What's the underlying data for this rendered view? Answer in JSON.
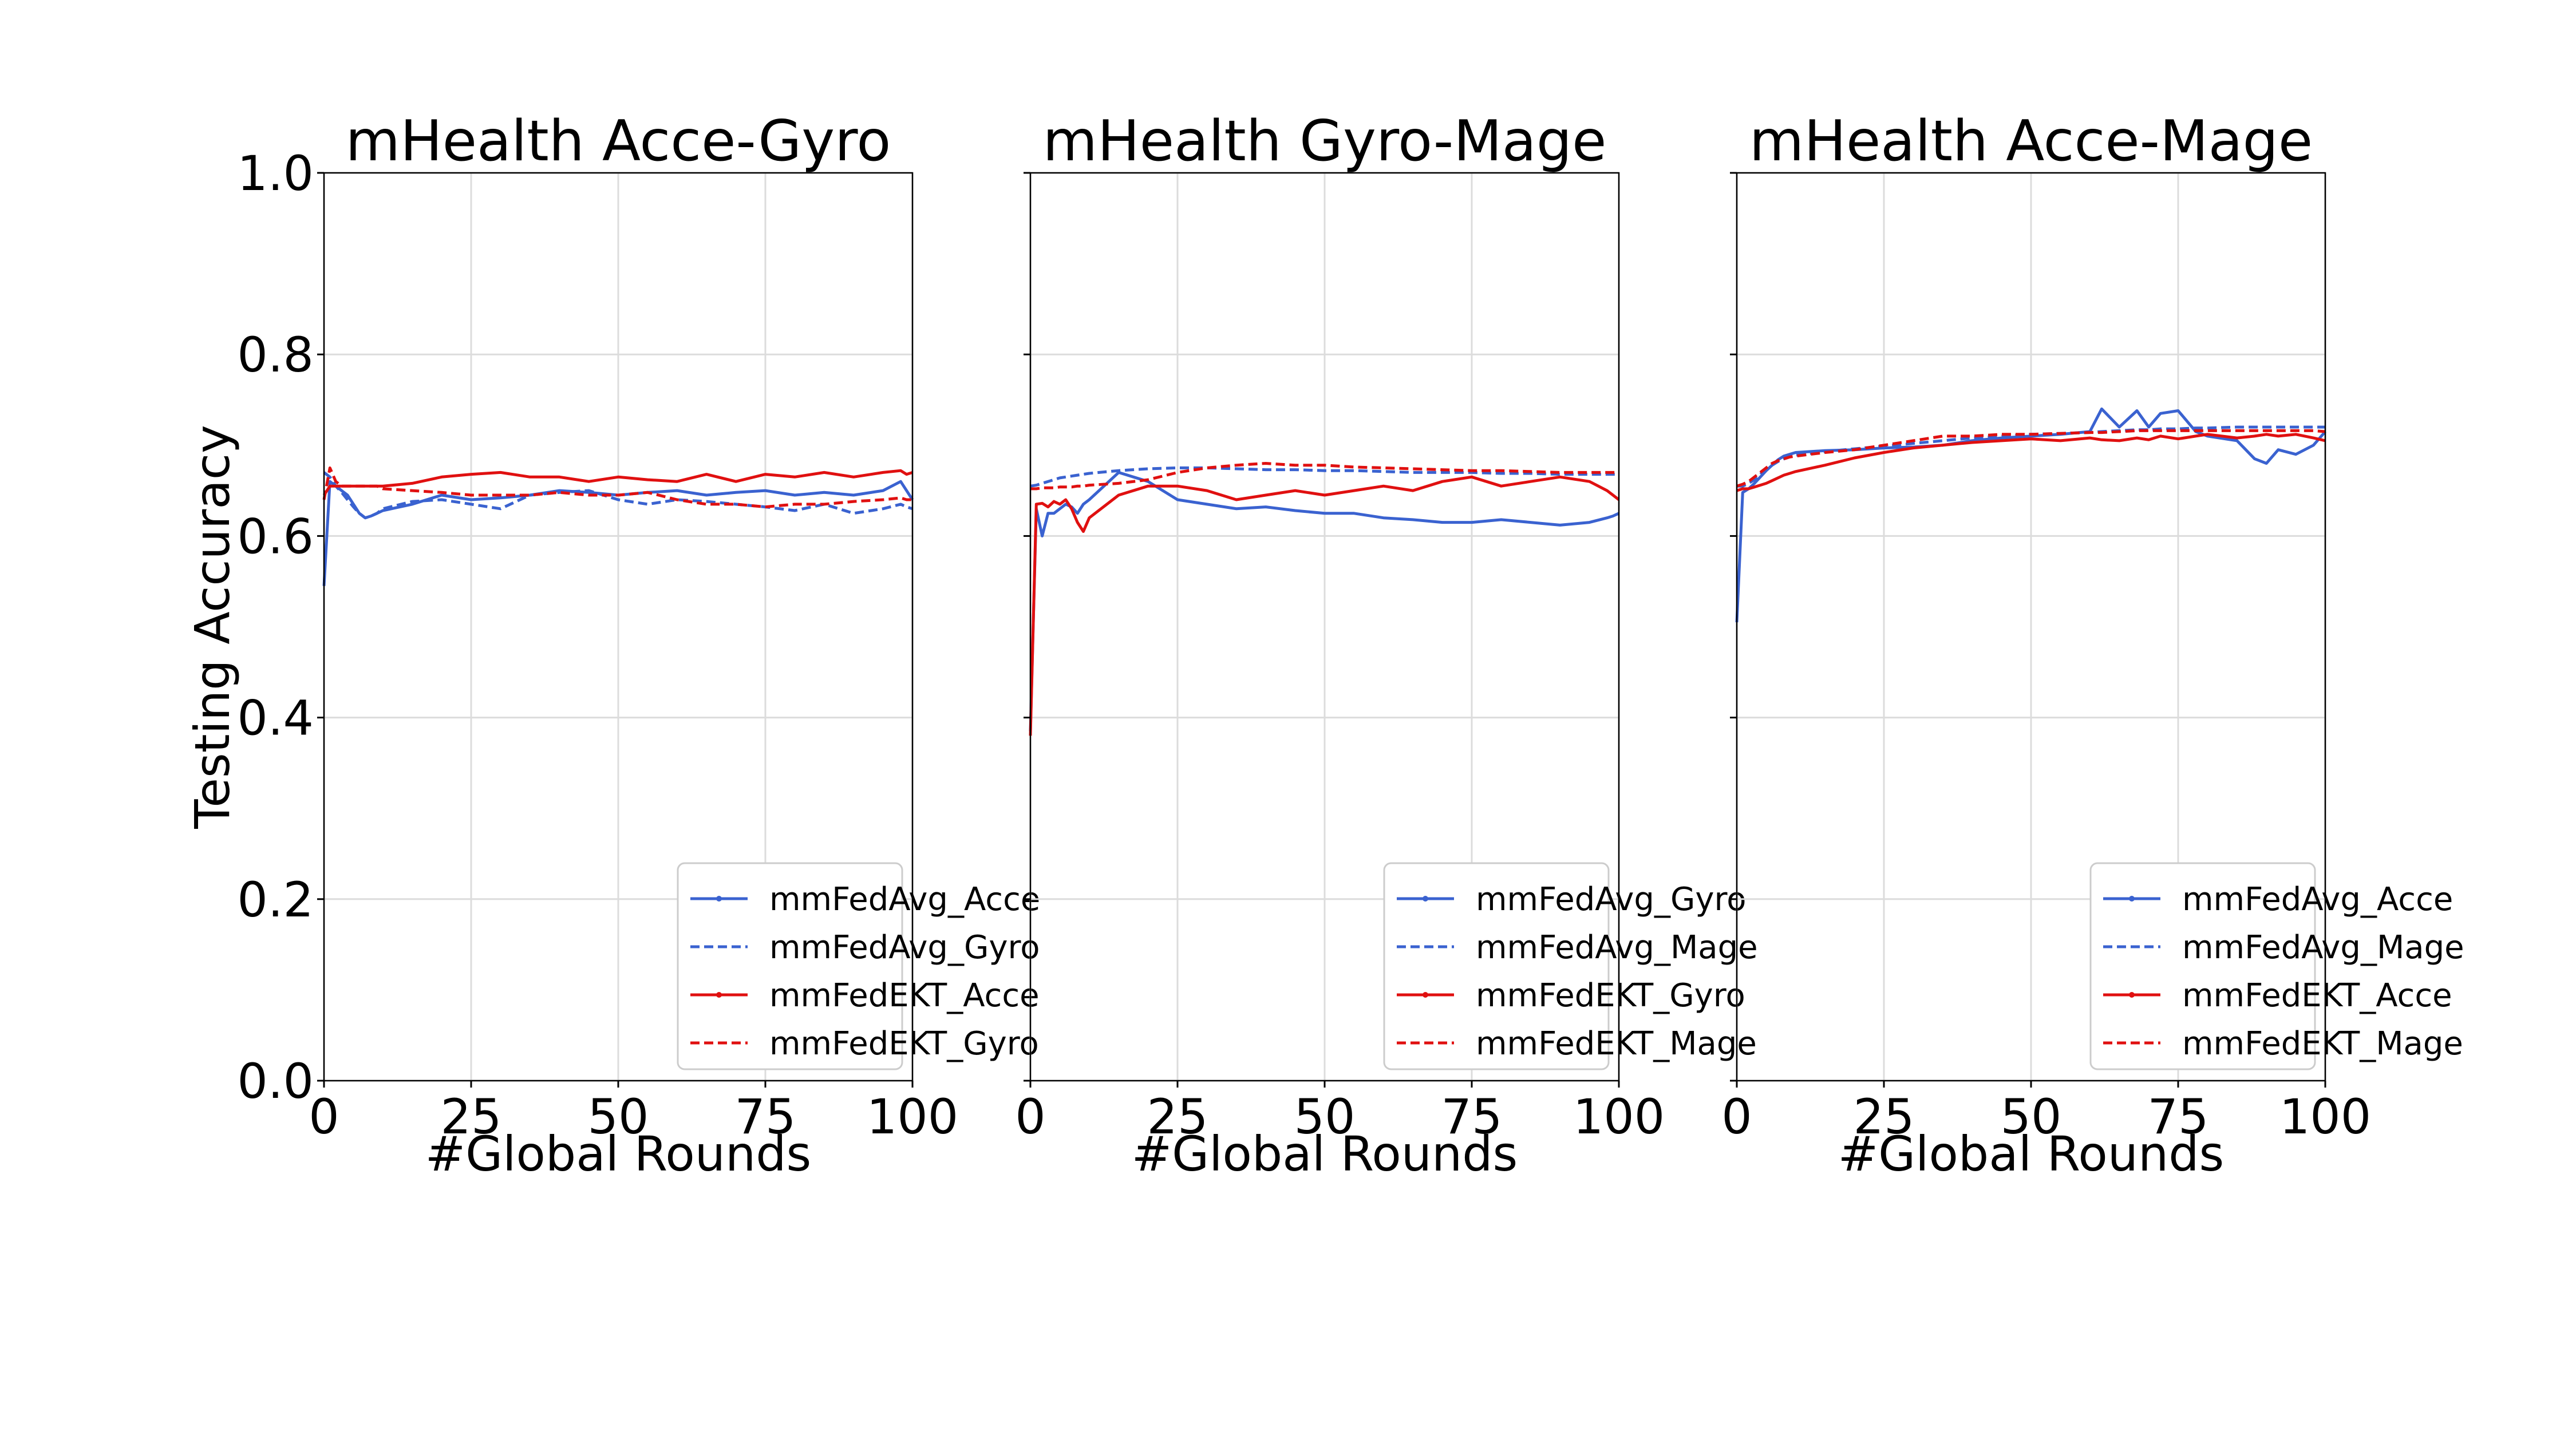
{
  "chart_data": [
    {
      "type": "line",
      "title": "mHealth Acce-Gyro",
      "xlabel": "#Global Rounds",
      "ylabel": "Testing Accuracy",
      "xlim": [
        0,
        100
      ],
      "ylim": [
        0.0,
        1.0
      ],
      "xticks": [
        "0",
        "25",
        "50",
        "75",
        "100"
      ],
      "yticks": [
        "0.0",
        "0.2",
        "0.4",
        "0.6",
        "0.8",
        "1.0"
      ],
      "grid": true,
      "legend_position": "lower-right",
      "x": [
        0,
        1,
        2,
        3,
        4,
        5,
        6,
        7,
        8,
        9,
        10,
        15,
        20,
        25,
        30,
        35,
        40,
        45,
        50,
        55,
        60,
        65,
        70,
        75,
        80,
        85,
        90,
        95,
        98,
        99,
        100
      ],
      "series": [
        {
          "name": "mmFedAvg_Acce",
          "color": "#3a62d0",
          "dash": "solid",
          "values": [
            0.545,
            0.66,
            0.655,
            0.65,
            0.645,
            0.635,
            0.625,
            0.62,
            0.622,
            0.625,
            0.628,
            0.635,
            0.645,
            0.64,
            0.642,
            0.645,
            0.65,
            0.648,
            0.645,
            0.648,
            0.65,
            0.645,
            0.648,
            0.65,
            0.645,
            0.648,
            0.645,
            0.65,
            0.66,
            0.65,
            0.64
          ]
        },
        {
          "name": "mmFedAvg_Gyro",
          "color": "#3a62d0",
          "dash": "dashed",
          "values": [
            0.67,
            0.665,
            0.655,
            0.648,
            0.64,
            0.632,
            0.625,
            0.62,
            0.622,
            0.625,
            0.63,
            0.638,
            0.64,
            0.635,
            0.63,
            0.645,
            0.648,
            0.65,
            0.64,
            0.635,
            0.64,
            0.638,
            0.635,
            0.632,
            0.628,
            0.635,
            0.625,
            0.63,
            0.635,
            0.632,
            0.63
          ]
        },
        {
          "name": "mmFedEKT_Acce",
          "color": "#e01010",
          "dash": "solid",
          "values": [
            0.645,
            0.655,
            0.655,
            0.655,
            0.655,
            0.655,
            0.655,
            0.655,
            0.655,
            0.655,
            0.655,
            0.658,
            0.665,
            0.668,
            0.67,
            0.665,
            0.665,
            0.66,
            0.665,
            0.662,
            0.66,
            0.668,
            0.66,
            0.668,
            0.665,
            0.67,
            0.665,
            0.67,
            0.672,
            0.668,
            0.67
          ]
        },
        {
          "name": "mmFedEKT_Gyro",
          "color": "#e01010",
          "dash": "dashed",
          "values": [
            0.64,
            0.675,
            0.66,
            0.655,
            0.655,
            0.655,
            0.655,
            0.655,
            0.655,
            0.655,
            0.652,
            0.65,
            0.648,
            0.645,
            0.645,
            0.645,
            0.648,
            0.645,
            0.645,
            0.648,
            0.64,
            0.635,
            0.635,
            0.632,
            0.635,
            0.635,
            0.638,
            0.64,
            0.642,
            0.64,
            0.64
          ]
        }
      ]
    },
    {
      "type": "line",
      "title": "mHealth Gyro-Mage",
      "xlabel": "#Global Rounds",
      "ylabel": "",
      "xlim": [
        0,
        100
      ],
      "ylim": [
        0.0,
        1.0
      ],
      "xticks": [
        "0",
        "25",
        "50",
        "75",
        "100"
      ],
      "yticks": [],
      "grid": true,
      "legend_position": "lower-right",
      "x": [
        0,
        1,
        2,
        3,
        4,
        5,
        6,
        7,
        8,
        9,
        10,
        15,
        20,
        25,
        30,
        35,
        40,
        45,
        50,
        55,
        60,
        65,
        70,
        75,
        80,
        85,
        90,
        95,
        98,
        99,
        100
      ],
      "series": [
        {
          "name": "mmFedAvg_Gyro",
          "color": "#3a62d0",
          "dash": "solid",
          "values": [
            0.385,
            0.63,
            0.6,
            0.625,
            0.625,
            0.63,
            0.635,
            0.632,
            0.625,
            0.635,
            0.64,
            0.67,
            0.66,
            0.64,
            0.635,
            0.63,
            0.632,
            0.628,
            0.625,
            0.625,
            0.62,
            0.618,
            0.615,
            0.615,
            0.618,
            0.615,
            0.612,
            0.615,
            0.62,
            0.622,
            0.625
          ]
        },
        {
          "name": "mmFedAvg_Mage",
          "color": "#3a62d0",
          "dash": "dashed",
          "values": [
            0.655,
            0.656,
            0.658,
            0.66,
            0.662,
            0.664,
            0.665,
            0.666,
            0.667,
            0.668,
            0.669,
            0.672,
            0.674,
            0.675,
            0.675,
            0.674,
            0.673,
            0.673,
            0.672,
            0.672,
            0.671,
            0.67,
            0.67,
            0.67,
            0.669,
            0.669,
            0.668,
            0.668,
            0.668,
            0.668,
            0.668
          ]
        },
        {
          "name": "mmFedEKT_Gyro",
          "color": "#e01010",
          "dash": "solid",
          "values": [
            0.38,
            0.635,
            0.636,
            0.632,
            0.638,
            0.635,
            0.64,
            0.63,
            0.615,
            0.605,
            0.62,
            0.645,
            0.655,
            0.655,
            0.65,
            0.64,
            0.645,
            0.65,
            0.645,
            0.65,
            0.655,
            0.65,
            0.66,
            0.665,
            0.655,
            0.66,
            0.665,
            0.66,
            0.65,
            0.645,
            0.64
          ]
        },
        {
          "name": "mmFedEKT_Mage",
          "color": "#e01010",
          "dash": "dashed",
          "values": [
            0.652,
            0.652,
            0.653,
            0.653,
            0.653,
            0.654,
            0.654,
            0.654,
            0.655,
            0.655,
            0.656,
            0.658,
            0.662,
            0.67,
            0.675,
            0.678,
            0.68,
            0.678,
            0.678,
            0.676,
            0.675,
            0.674,
            0.673,
            0.672,
            0.672,
            0.671,
            0.67,
            0.67,
            0.67,
            0.67,
            0.67
          ]
        }
      ]
    },
    {
      "type": "line",
      "title": "mHealth Acce-Mage",
      "xlabel": "#Global Rounds",
      "ylabel": "",
      "xlim": [
        0,
        100
      ],
      "ylim": [
        0.0,
        1.0
      ],
      "xticks": [
        "0",
        "25",
        "50",
        "75",
        "100"
      ],
      "yticks": [],
      "grid": true,
      "legend_position": "lower-right",
      "x": [
        0,
        1,
        2,
        3,
        4,
        5,
        6,
        7,
        8,
        9,
        10,
        15,
        20,
        25,
        30,
        35,
        40,
        45,
        50,
        55,
        60,
        62,
        65,
        68,
        70,
        72,
        75,
        78,
        80,
        85,
        88,
        90,
        92,
        95,
        98,
        100
      ],
      "series": [
        {
          "name": "mmFedAvg_Acce",
          "color": "#3a62d0",
          "dash": "solid",
          "values": [
            0.505,
            0.648,
            0.652,
            0.658,
            0.665,
            0.672,
            0.678,
            0.684,
            0.688,
            0.69,
            0.692,
            0.694,
            0.695,
            0.697,
            0.698,
            0.7,
            0.705,
            0.708,
            0.71,
            0.712,
            0.715,
            0.74,
            0.72,
            0.738,
            0.72,
            0.735,
            0.738,
            0.715,
            0.71,
            0.705,
            0.685,
            0.68,
            0.695,
            0.69,
            0.7,
            0.715
          ]
        },
        {
          "name": "mmFedAvg_Mage",
          "color": "#3a62d0",
          "dash": "dashed",
          "values": [
            0.655,
            0.655,
            0.658,
            0.662,
            0.668,
            0.674,
            0.678,
            0.682,
            0.685,
            0.687,
            0.689,
            0.693,
            0.696,
            0.699,
            0.702,
            0.705,
            0.708,
            0.71,
            0.712,
            0.713,
            0.714,
            0.715,
            0.716,
            0.717,
            0.717,
            0.718,
            0.718,
            0.719,
            0.719,
            0.72,
            0.72,
            0.72,
            0.72,
            0.72,
            0.72,
            0.72
          ]
        },
        {
          "name": "mmFedEKT_Acce",
          "color": "#e01010",
          "dash": "solid",
          "values": [
            0.65,
            0.652,
            0.652,
            0.654,
            0.656,
            0.658,
            0.661,
            0.664,
            0.667,
            0.669,
            0.671,
            0.678,
            0.686,
            0.692,
            0.697,
            0.7,
            0.703,
            0.705,
            0.707,
            0.705,
            0.708,
            0.706,
            0.705,
            0.708,
            0.706,
            0.71,
            0.707,
            0.71,
            0.712,
            0.708,
            0.71,
            0.712,
            0.71,
            0.712,
            0.708,
            0.705
          ]
        },
        {
          "name": "mmFedEKT_Mage",
          "color": "#e01010",
          "dash": "dashed",
          "values": [
            0.655,
            0.657,
            0.66,
            0.665,
            0.67,
            0.675,
            0.68,
            0.683,
            0.685,
            0.687,
            0.688,
            0.692,
            0.695,
            0.7,
            0.705,
            0.71,
            0.71,
            0.712,
            0.712,
            0.713,
            0.714,
            0.714,
            0.715,
            0.716,
            0.716,
            0.716,
            0.716,
            0.716,
            0.716,
            0.716,
            0.716,
            0.716,
            0.716,
            0.716,
            0.716,
            0.715
          ]
        }
      ]
    }
  ]
}
